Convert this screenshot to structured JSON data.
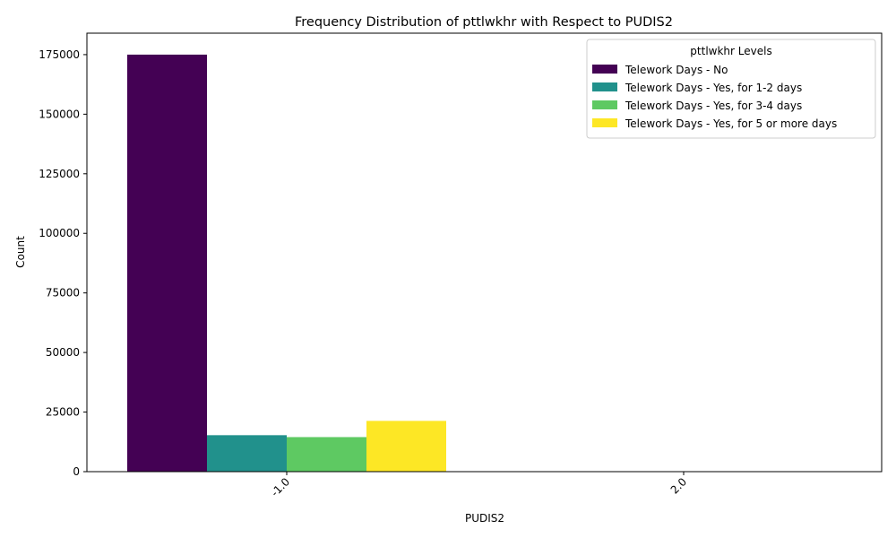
{
  "chart_data": {
    "type": "bar",
    "title": "Frequency Distribution of pttlwkhr with Respect to PUDIS2",
    "xlabel": "PUDIS2",
    "ylabel": "Count",
    "categories": [
      "-1.0",
      "2.0"
    ],
    "ylim": [
      0,
      184000
    ],
    "yticks": [
      0,
      25000,
      50000,
      75000,
      100000,
      125000,
      150000,
      175000
    ],
    "legend": {
      "title": "pttlwkhr Levels",
      "placement": "top-right"
    },
    "grid": false,
    "series": [
      {
        "name": "Telework Days - No",
        "color": "#440154",
        "values": [
          175000,
          0
        ]
      },
      {
        "name": "Telework Days - Yes, for 1-2 days",
        "color": "#21918c",
        "values": [
          15300,
          0
        ]
      },
      {
        "name": "Telework Days - Yes, for 3-4 days",
        "color": "#5ec962",
        "values": [
          14500,
          0
        ]
      },
      {
        "name": "Telework Days - Yes, for 5 or more days",
        "color": "#fde725",
        "values": [
          21300,
          0
        ]
      }
    ]
  }
}
